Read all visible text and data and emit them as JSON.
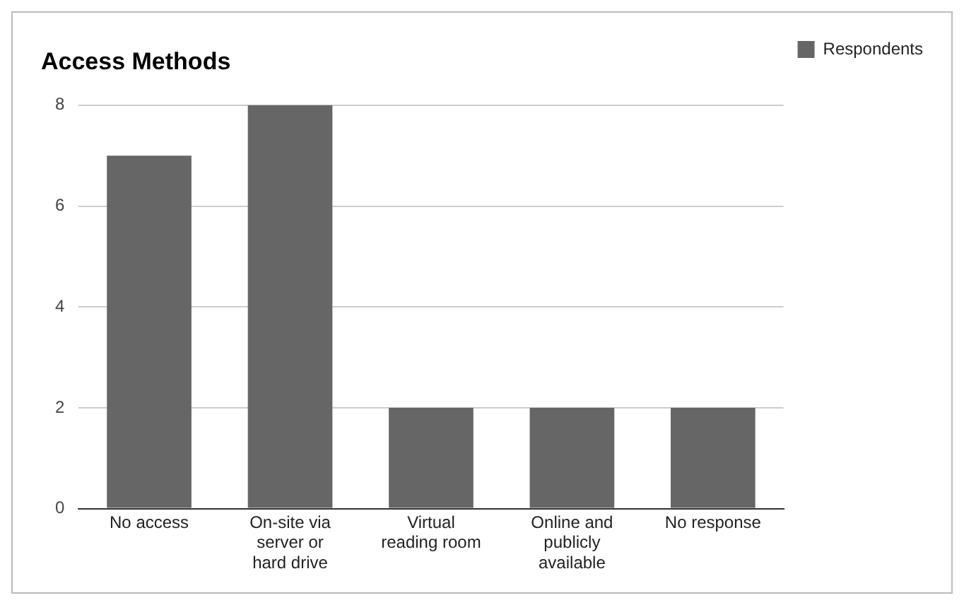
{
  "chart_data": {
    "type": "bar",
    "title": "Access Methods",
    "categories": [
      "No access",
      "On-site via server or hard drive",
      "Virtual reading room",
      "Online and publicly available",
      "No response"
    ],
    "series": [
      {
        "name": "Respondents",
        "color": "#666666",
        "values": [
          7,
          8,
          2,
          2,
          2
        ]
      }
    ],
    "ylim": [
      0,
      8
    ],
    "yticks": [
      0,
      2,
      4,
      6,
      8
    ],
    "grid": "y",
    "legend": "top right"
  }
}
